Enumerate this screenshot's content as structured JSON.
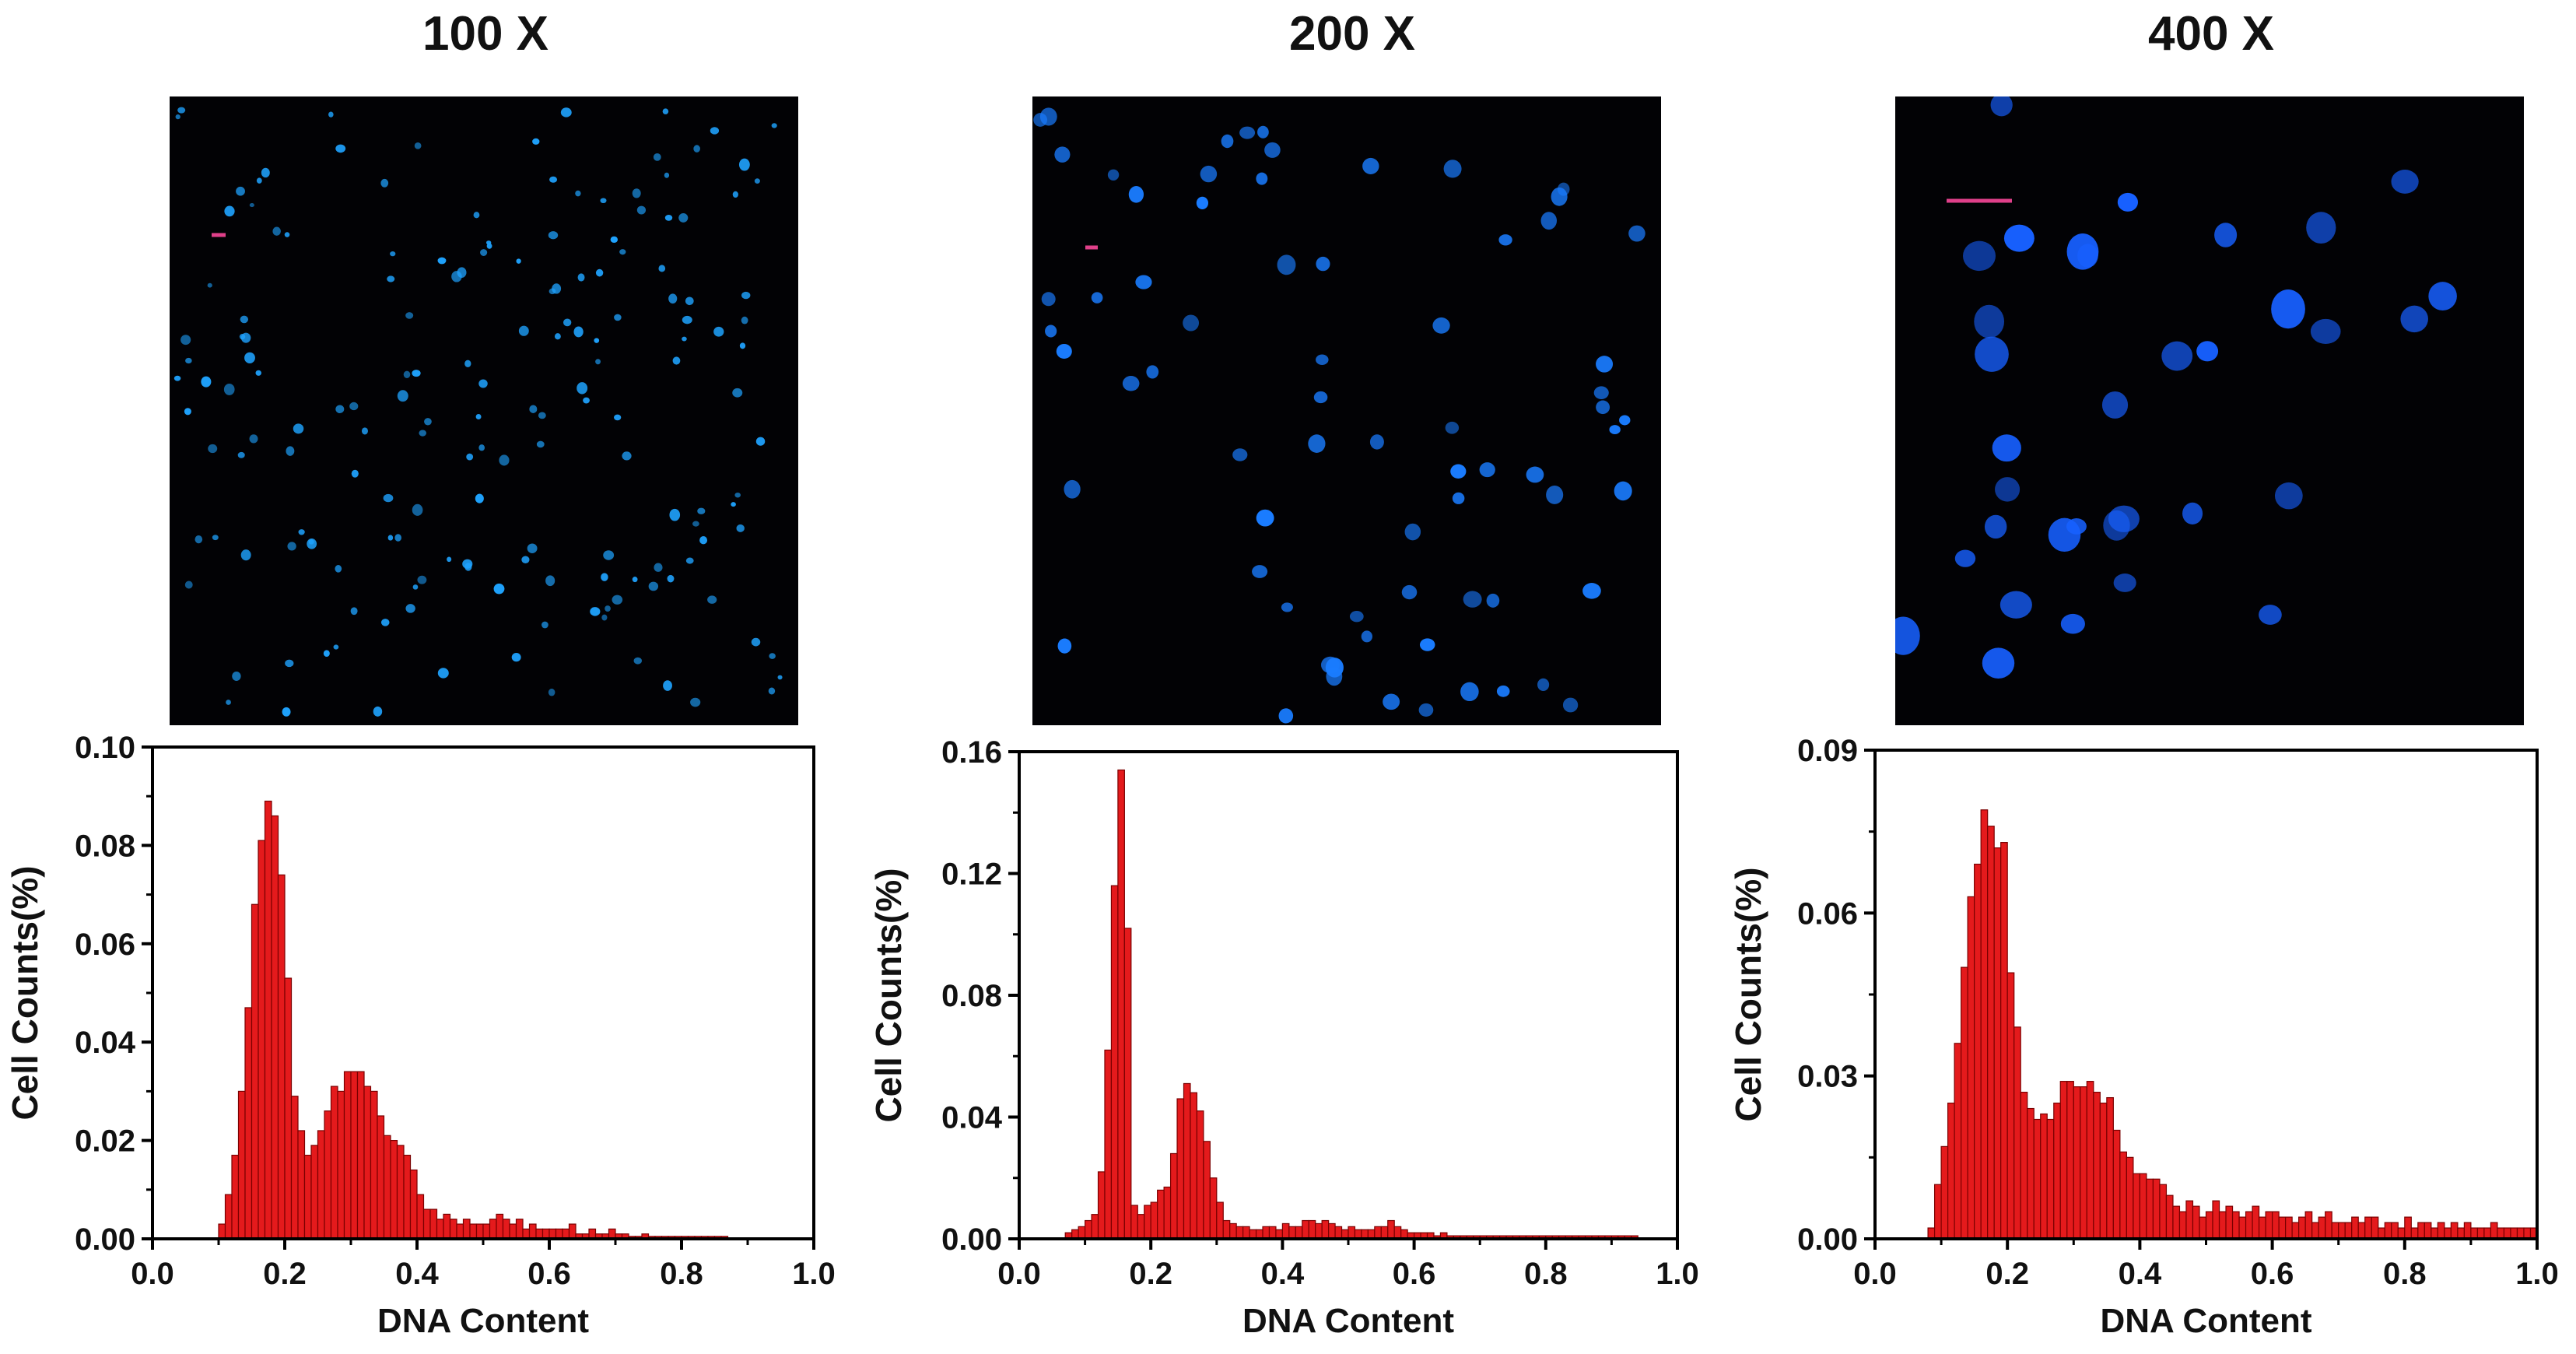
{
  "panels": [
    {
      "title": "100 X",
      "image": {
        "description": "fluorescence micrograph of stained nuclei"
      }
    },
    {
      "title": "200 X",
      "image": {
        "description": "fluorescence micrograph of stained nuclei"
      }
    },
    {
      "title": "400 X",
      "image": {
        "description": "fluorescence micrograph of stained nuclei"
      }
    }
  ],
  "colors": {
    "bar_fill": "#e41a1c",
    "bar_stroke": "#7a0000",
    "nuclei": "#1e90ff",
    "scale_bar": "#e0408a",
    "image_bg": "#020205"
  },
  "chart_data": [
    {
      "type": "bar",
      "xlabel": "DNA Content",
      "ylabel": "Cell Counts(%)",
      "xlim": [
        0,
        1.0
      ],
      "ylim": [
        0,
        0.1
      ],
      "xticks": [
        "0.0",
        "0.2",
        "0.4",
        "0.6",
        "0.8",
        "1.0"
      ],
      "yticks": [
        "0.00",
        "0.02",
        "0.04",
        "0.06",
        "0.08",
        "0.10"
      ],
      "bin_width": 0.01,
      "x_start": 0.1,
      "values": [
        0.003,
        0.009,
        0.017,
        0.03,
        0.047,
        0.068,
        0.081,
        0.089,
        0.086,
        0.074,
        0.053,
        0.029,
        0.022,
        0.017,
        0.019,
        0.022,
        0.026,
        0.031,
        0.03,
        0.034,
        0.034,
        0.034,
        0.031,
        0.03,
        0.025,
        0.021,
        0.02,
        0.019,
        0.017,
        0.014,
        0.009,
        0.006,
        0.006,
        0.004,
        0.005,
        0.004,
        0.003,
        0.004,
        0.003,
        0.003,
        0.003,
        0.004,
        0.005,
        0.004,
        0.003,
        0.004,
        0.002,
        0.003,
        0.002,
        0.002,
        0.002,
        0.002,
        0.002,
        0.003,
        0.001,
        0.001,
        0.002,
        0.001,
        0.001,
        0.002,
        0.001,
        0.001,
        0.0005,
        0.0005,
        0.001,
        0.0005,
        0.0005,
        0.0005,
        0.0005,
        0.0005,
        0.0005,
        0.0005,
        0.0005,
        0.0005,
        0.0005,
        0.0005,
        0.0005
      ]
    },
    {
      "type": "bar",
      "xlabel": "DNA Content",
      "ylabel": "Cell Counts(%)",
      "xlim": [
        0,
        1.0
      ],
      "ylim": [
        0,
        0.16
      ],
      "xticks": [
        "0.0",
        "0.2",
        "0.4",
        "0.6",
        "0.8",
        "1.0"
      ],
      "yticks": [
        "0.00",
        "0.04",
        "0.08",
        "0.12",
        "0.16"
      ],
      "bin_width": 0.01,
      "x_start": 0.07,
      "values": [
        0.002,
        0.003,
        0.004,
        0.006,
        0.008,
        0.022,
        0.062,
        0.116,
        0.154,
        0.102,
        0.011,
        0.008,
        0.011,
        0.012,
        0.016,
        0.017,
        0.028,
        0.046,
        0.051,
        0.048,
        0.042,
        0.032,
        0.02,
        0.012,
        0.006,
        0.005,
        0.004,
        0.004,
        0.003,
        0.003,
        0.004,
        0.004,
        0.003,
        0.005,
        0.004,
        0.004,
        0.006,
        0.006,
        0.005,
        0.006,
        0.005,
        0.004,
        0.003,
        0.004,
        0.003,
        0.003,
        0.003,
        0.004,
        0.004,
        0.006,
        0.004,
        0.003,
        0.002,
        0.002,
        0.002,
        0.002,
        0.001,
        0.002,
        0.001,
        0.001,
        0.001,
        0.001,
        0.001,
        0.001,
        0.001,
        0.001,
        0.001,
        0.001,
        0.001,
        0.001,
        0.001,
        0.001,
        0.001,
        0.001,
        0.001,
        0.001,
        0.001,
        0.001,
        0.001,
        0.001,
        0.001,
        0.001,
        0.001,
        0.001,
        0.001,
        0.001,
        0.001
      ]
    },
    {
      "type": "bar",
      "xlabel": "DNA Content",
      "ylabel": "Cell Counts(%)",
      "xlim": [
        0,
        1.0
      ],
      "ylim": [
        0,
        0.09
      ],
      "xticks": [
        "0.0",
        "0.2",
        "0.4",
        "0.6",
        "0.8",
        "1.0"
      ],
      "yticks": [
        "0.00",
        "0.03",
        "0.06",
        "0.09"
      ],
      "bin_width": 0.01,
      "x_start": 0.08,
      "values": [
        0.002,
        0.01,
        0.017,
        0.025,
        0.036,
        0.05,
        0.063,
        0.069,
        0.079,
        0.076,
        0.072,
        0.073,
        0.049,
        0.039,
        0.027,
        0.024,
        0.022,
        0.023,
        0.022,
        0.025,
        0.029,
        0.029,
        0.028,
        0.028,
        0.029,
        0.027,
        0.025,
        0.026,
        0.02,
        0.016,
        0.015,
        0.012,
        0.012,
        0.011,
        0.011,
        0.01,
        0.008,
        0.006,
        0.005,
        0.007,
        0.006,
        0.004,
        0.005,
        0.007,
        0.005,
        0.006,
        0.005,
        0.004,
        0.005,
        0.006,
        0.004,
        0.005,
        0.005,
        0.004,
        0.004,
        0.003,
        0.004,
        0.005,
        0.003,
        0.004,
        0.005,
        0.003,
        0.003,
        0.003,
        0.004,
        0.003,
        0.004,
        0.004,
        0.002,
        0.003,
        0.003,
        0.002,
        0.004,
        0.002,
        0.003,
        0.003,
        0.002,
        0.003,
        0.002,
        0.003,
        0.002,
        0.003,
        0.002,
        0.002,
        0.002,
        0.003,
        0.002,
        0.002,
        0.002,
        0.002,
        0.002,
        0.002
      ]
    }
  ]
}
